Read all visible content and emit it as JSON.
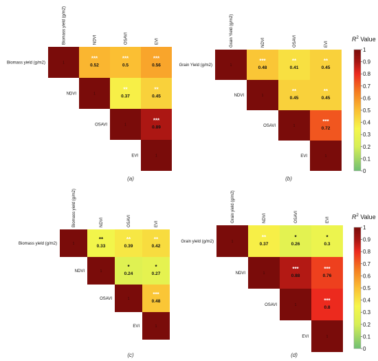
{
  "chart_data": [
    {
      "type": "heatmap",
      "panel_label": "(a)",
      "row_labels": [
        "Biomass yield (g/m2)",
        "NDVI",
        "OSAVI",
        "EVI"
      ],
      "col_labels": [
        "Biomass yield (g/m2)",
        "NDVI",
        "OSAVI",
        "EVI"
      ],
      "values": [
        [
          1,
          0.52,
          0.5,
          0.56
        ],
        [
          null,
          1,
          0.37,
          0.45
        ],
        [
          null,
          null,
          1,
          0.89
        ],
        [
          null,
          null,
          null,
          1
        ]
      ],
      "significance": [
        [
          "",
          "***",
          "***",
          "***"
        ],
        [
          "",
          "",
          "**",
          "**"
        ],
        [
          "",
          "",
          "",
          "***"
        ],
        [
          "",
          "",
          "",
          ""
        ]
      ]
    },
    {
      "type": "heatmap",
      "panel_label": "(b)",
      "row_labels": [
        "Grain Yield (g/m2)",
        "NDVI",
        "OSAVI",
        "EVI"
      ],
      "col_labels": [
        "Grain Yield (g/m2)",
        "NDVI",
        "OSAVI",
        "EVI"
      ],
      "values": [
        [
          1,
          0.48,
          0.41,
          0.45
        ],
        [
          null,
          1,
          0.45,
          0.45
        ],
        [
          null,
          null,
          1,
          0.72
        ],
        [
          null,
          null,
          null,
          1
        ]
      ],
      "significance": [
        [
          "",
          "***",
          "**",
          "**"
        ],
        [
          "",
          "",
          "**",
          "**"
        ],
        [
          "",
          "",
          "",
          "***"
        ],
        [
          "",
          "",
          "",
          ""
        ]
      ]
    },
    {
      "type": "heatmap",
      "panel_label": "(c)",
      "row_labels": [
        "Biomass yield (g/m2)",
        "NDVI",
        "OSAVI",
        "EVI"
      ],
      "col_labels": [
        "Biomass yield (g/m2)",
        "NDVI",
        "OSAVI",
        "EVI"
      ],
      "values": [
        [
          1,
          0.33,
          0.39,
          0.42
        ],
        [
          null,
          1,
          0.24,
          0.27
        ],
        [
          null,
          null,
          1,
          0.48
        ],
        [
          null,
          null,
          null,
          1
        ]
      ],
      "significance": [
        [
          "",
          "**",
          "**",
          "**"
        ],
        [
          "",
          "",
          "*",
          "*"
        ],
        [
          "",
          "",
          "",
          "***"
        ],
        [
          "",
          "",
          "",
          ""
        ]
      ]
    },
    {
      "type": "heatmap",
      "panel_label": "(d)",
      "row_labels": [
        "Grain yield (g/m2)",
        "NDVI",
        "OSAVI",
        "EVI"
      ],
      "col_labels": [
        "Grain yield (g/m2)",
        "NDVI",
        "OSAVI",
        "EVI"
      ],
      "values": [
        [
          1,
          0.37,
          0.26,
          0.3
        ],
        [
          null,
          1,
          0.88,
          0.76
        ],
        [
          null,
          null,
          1,
          0.8
        ],
        [
          null,
          null,
          null,
          1
        ]
      ],
      "significance": [
        [
          "",
          "**",
          "*",
          "*"
        ],
        [
          "",
          "",
          "***",
          "***"
        ],
        [
          "",
          "",
          "",
          "***"
        ],
        [
          "",
          "",
          "",
          ""
        ]
      ]
    }
  ],
  "colorbars": [
    {
      "title_base": "R",
      "title_sup": "2",
      "title_rest": " Value",
      "ticks": [
        "1",
        "0.9",
        "0.8",
        "0.7",
        "0.6",
        "0.5",
        "0.4",
        "0.3",
        "0.2",
        "0.1",
        "0"
      ]
    },
    {
      "title_base": "R",
      "title_sup": "2",
      "title_rest": " Value",
      "ticks": [
        "1",
        "0.9",
        "0.8",
        "0.7",
        "0.6",
        "0.5",
        "0.4",
        "0.3",
        "0.2",
        "0.1",
        "0"
      ]
    }
  ],
  "colors": {
    "scale": [
      "#6fbf73",
      "#f6f64a",
      "#fbbf33",
      "#f57d1f",
      "#ec2a1e",
      "#a51512",
      "#7a0c0a"
    ],
    "significance_light": "#ffffff",
    "significance_dark": "#111111"
  }
}
